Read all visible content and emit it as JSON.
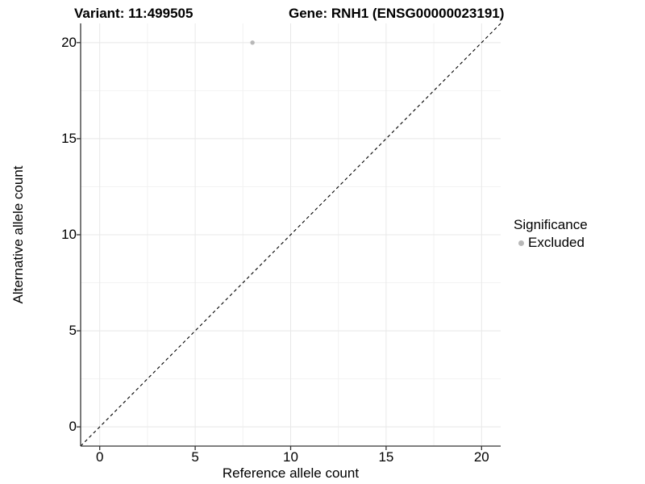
{
  "header": {
    "variant_title": "Variant: 11:499505",
    "gene_title": "Gene: RNH1 (ENSG00000023191)"
  },
  "legend": {
    "title": "Significance",
    "items": [
      {
        "label": "Excluded",
        "color": "#b8b8b8"
      }
    ]
  },
  "colors": {
    "grid_major": "#e8e8e8",
    "grid_minor": "#f2f2f2",
    "axis_line": "#333333",
    "tick_mark": "#333333",
    "identity_line": "#000000",
    "point_excluded": "#b8b8b8",
    "text": "#000000",
    "background": "#ffffff"
  },
  "chart_data": {
    "type": "scatter",
    "title": "Variant: 11:499505    Gene: RNH1 (ENSG00000023191)",
    "xlabel": "Reference allele count",
    "ylabel": "Alternative allele count",
    "xlim": [
      -1,
      21
    ],
    "ylim": [
      -1,
      21
    ],
    "x_ticks": [
      0,
      5,
      10,
      15,
      20
    ],
    "y_ticks": [
      0,
      5,
      10,
      15,
      20
    ],
    "x_minor_ticks": [
      2.5,
      7.5,
      12.5,
      17.5
    ],
    "y_minor_ticks": [
      2.5,
      7.5,
      12.5,
      17.5
    ],
    "grid": true,
    "legend_position": "right",
    "legend_title": "Significance",
    "series": [
      {
        "name": "Excluded",
        "color": "#b8b8b8",
        "points": [
          {
            "x": 8,
            "y": 20
          }
        ]
      }
    ],
    "reference_line": {
      "type": "identity y=x",
      "from": [
        -1,
        -1
      ],
      "to": [
        21,
        21
      ],
      "style": "dashed",
      "color": "#000000"
    }
  }
}
